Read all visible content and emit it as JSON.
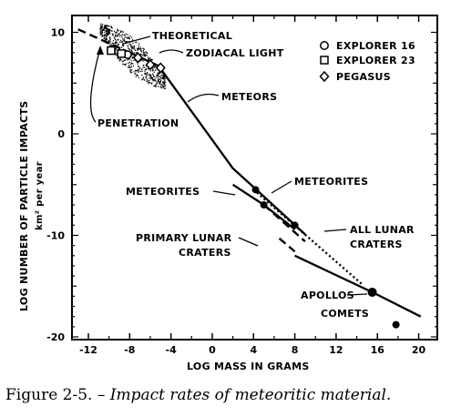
{
  "chart_data": {
    "type": "line",
    "xlabel": "LOG MASS IN GRAMS",
    "ylabel": "LOG NUMBER OF PARTICLE IMPACTS",
    "ylabel_unit": "km² per year",
    "xlim": [
      -14,
      21
    ],
    "ylim": [
      -20,
      11
    ],
    "x_ticks": [
      -12,
      -8,
      -4,
      0,
      4,
      8,
      12,
      16,
      20
    ],
    "y_ticks": [
      10,
      0,
      -10,
      -20
    ],
    "series": [
      {
        "name": "THEORETICAL",
        "style": "dashed",
        "points": [
          [
            -13,
            10.3
          ],
          [
            -8,
            8.0
          ]
        ]
      },
      {
        "name": "METEORS",
        "style": "solid",
        "points": [
          [
            -8,
            8.0
          ],
          [
            -5.2,
            6.7
          ],
          [
            2,
            -3.4
          ],
          [
            4.5,
            -5.7
          ],
          [
            9,
            -9.9
          ]
        ]
      },
      {
        "name": "METEORITES",
        "style": "solid",
        "points": [
          [
            2,
            -5.0
          ],
          [
            5,
            -7.0
          ],
          [
            8,
            -9.4
          ]
        ]
      },
      {
        "name": "METEORITES (dashed)",
        "style": "dashed",
        "points": [
          [
            5,
            -7.0
          ],
          [
            9,
            -10.6
          ]
        ]
      },
      {
        "name": "PRIMARY LUNAR CRATERS",
        "style": "dashed",
        "points": [
          [
            6.5,
            -10.3
          ],
          [
            8,
            -11.6
          ]
        ]
      },
      {
        "name": "PRIMARY LUNAR CRATERS",
        "style": "solid",
        "points": [
          [
            8,
            -12.0
          ],
          [
            15.5,
            -15.6
          ],
          [
            20.2,
            -18.0
          ]
        ]
      },
      {
        "name": "ALL LUNAR CRATERS",
        "style": "dotted",
        "points": [
          [
            4,
            -5.5
          ],
          [
            14.5,
            -14.8
          ]
        ]
      }
    ],
    "points": [
      {
        "name": "EXPLORER 16",
        "marker": "circle",
        "x": -9.8,
        "y": 8.3
      },
      {
        "name": "EXPLORER 16",
        "marker": "circle",
        "x": -8.2,
        "y": 7.8
      },
      {
        "name": "EXPLORER 23",
        "marker": "square",
        "x": -9.8,
        "y": 8.2
      },
      {
        "name": "EXPLORER 23",
        "marker": "square",
        "x": -8.8,
        "y": 7.9
      },
      {
        "name": "PEGASUS",
        "marker": "diamond",
        "x": -7.2,
        "y": 7.5
      },
      {
        "name": "PEGASUS",
        "marker": "diamond",
        "x": -6.0,
        "y": 6.8
      },
      {
        "name": "PEGASUS",
        "marker": "diamond",
        "x": -5.0,
        "y": 6.5
      },
      {
        "name": "METEORITES",
        "marker": "filled",
        "x": 4.2,
        "y": -5.5
      },
      {
        "name": "METEORITES",
        "marker": "filled",
        "x": 5.0,
        "y": -7.0
      },
      {
        "name": "METEORITES",
        "marker": "filled",
        "x": 8.0,
        "y": -9.0
      },
      {
        "name": "APOLLOS",
        "marker": "filled",
        "x": 15.5,
        "y": -15.6
      },
      {
        "name": "COMETS",
        "marker": "filled",
        "x": 17.8,
        "y": -18.8
      }
    ],
    "legend": [
      "EXPLORER 16",
      "EXPLORER 23",
      "PEGASUS"
    ],
    "legend_position": "top-right",
    "labels": {
      "theoretical": "THEORETICAL",
      "zodiacal": "ZODIACAL LIGHT",
      "meteors": "METEORS",
      "penetration": "PENETRATION",
      "meteorites_right": "METEORITES",
      "meteorites_left": "METEORITES",
      "primary_lunar_1": "PRIMARY LUNAR",
      "primary_lunar_2": "CRATERS",
      "all_lunar_1": "ALL LUNAR",
      "all_lunar_2": "CRATERS",
      "apollos": "APOLLOS",
      "comets": "COMETS"
    },
    "grid": false
  },
  "caption": {
    "figure": "Figure 2-5.",
    "text": " – Impact rates of meteoritic material."
  }
}
